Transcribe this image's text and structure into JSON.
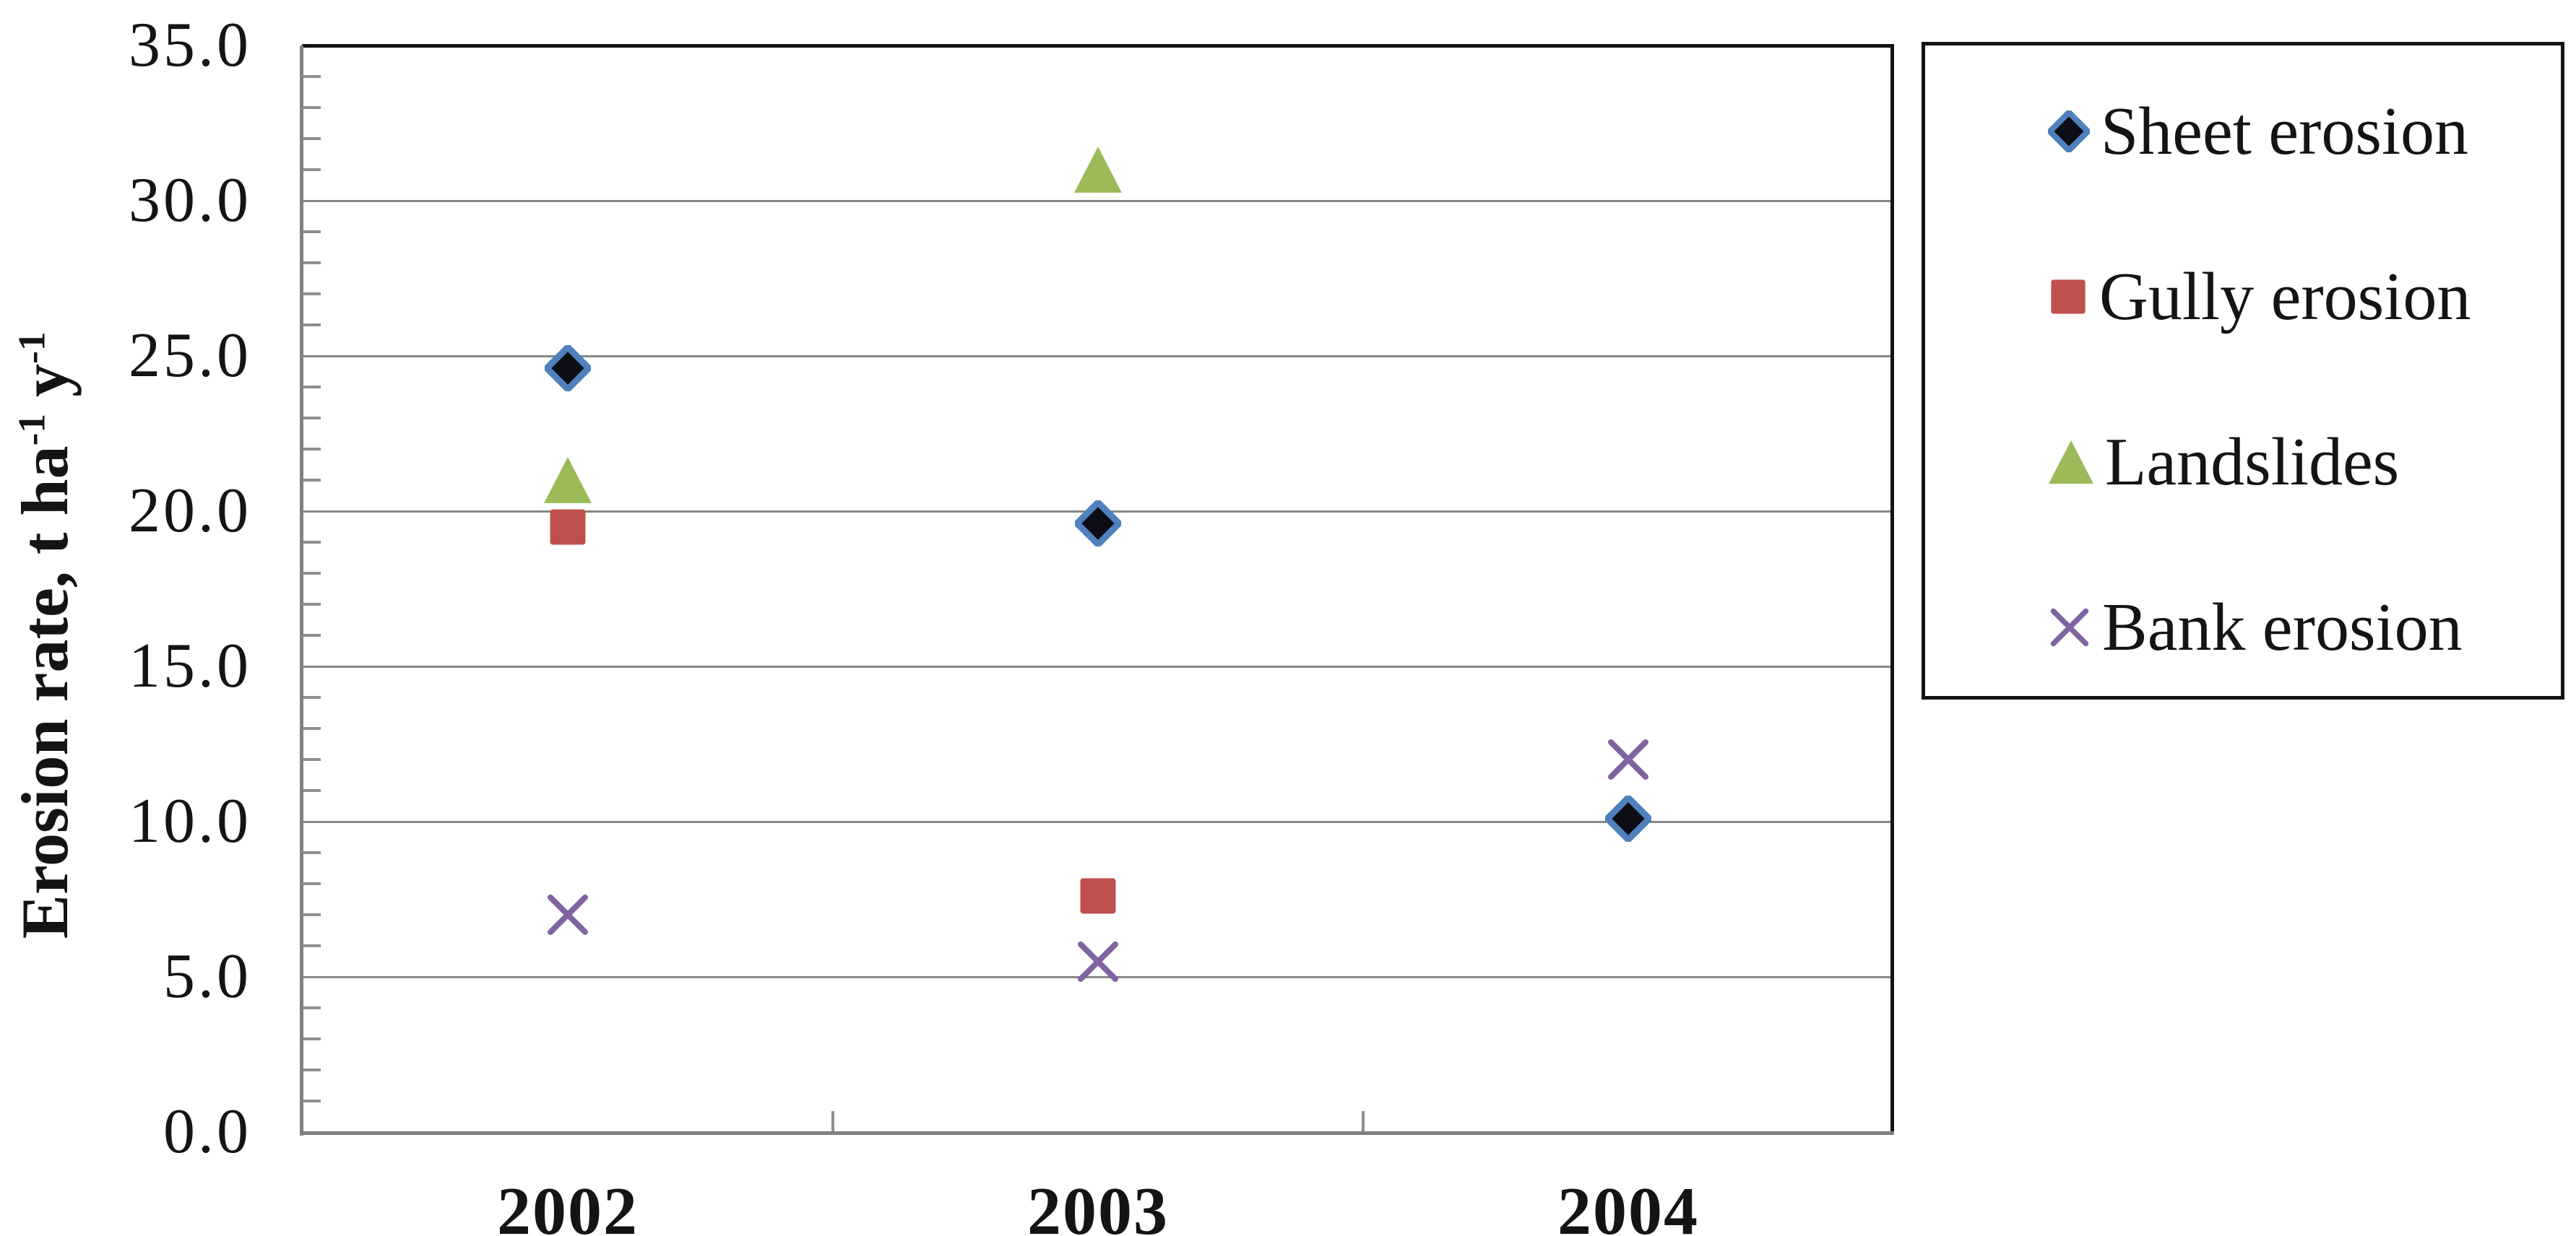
{
  "chart_data": {
    "type": "scatter",
    "title": "",
    "categories": [
      "2002",
      "2003",
      "2004"
    ],
    "series": [
      {
        "name": "Sheet erosion",
        "marker": "diamond",
        "fill": "#0D0D16",
        "stroke": "#4F81BD",
        "values": [
          24.6,
          19.6,
          10.1
        ]
      },
      {
        "name": "Gully erosion",
        "marker": "square",
        "fill": "#C0504D",
        "stroke": null,
        "values": [
          19.5,
          7.6,
          null
        ]
      },
      {
        "name": "Landslides",
        "marker": "triangle",
        "fill": "#9BBB59",
        "stroke": null,
        "values": [
          21.0,
          31.0,
          null
        ]
      },
      {
        "name": "Bank erosion",
        "marker": "x",
        "fill": "#8064A2",
        "stroke": null,
        "values": [
          7.0,
          5.5,
          12.0
        ]
      }
    ],
    "ylabel": {
      "text1": "Erosion rate, t ha",
      "sup1": "-1",
      "text2": " y",
      "sup2": "-1"
    },
    "xlabel": "",
    "ylim": [
      0,
      35
    ],
    "ytick_step": 5,
    "ytick_labels": [
      "0.0",
      "5.0",
      "10.0",
      "15.0",
      "20.0",
      "25.0",
      "30.0",
      "35.0"
    ],
    "minor_tick_step": 1,
    "grid": true,
    "legend_position": "right",
    "legend_entries": [
      "Sheet erosion",
      "Gully erosion",
      "Landslides",
      "Bank erosion"
    ]
  },
  "colors": {
    "gridline": "#878787",
    "axis": "#808080",
    "tick": "#8f8f8f",
    "plot_border": "#141414",
    "text": "#141414",
    "sheet_fill": "#0D0D16",
    "sheet_stroke": "#4F81BD",
    "gully": "#C0504D",
    "landslides": "#9BBB59",
    "bank": "#8064A2",
    "background": "#ffffff"
  }
}
